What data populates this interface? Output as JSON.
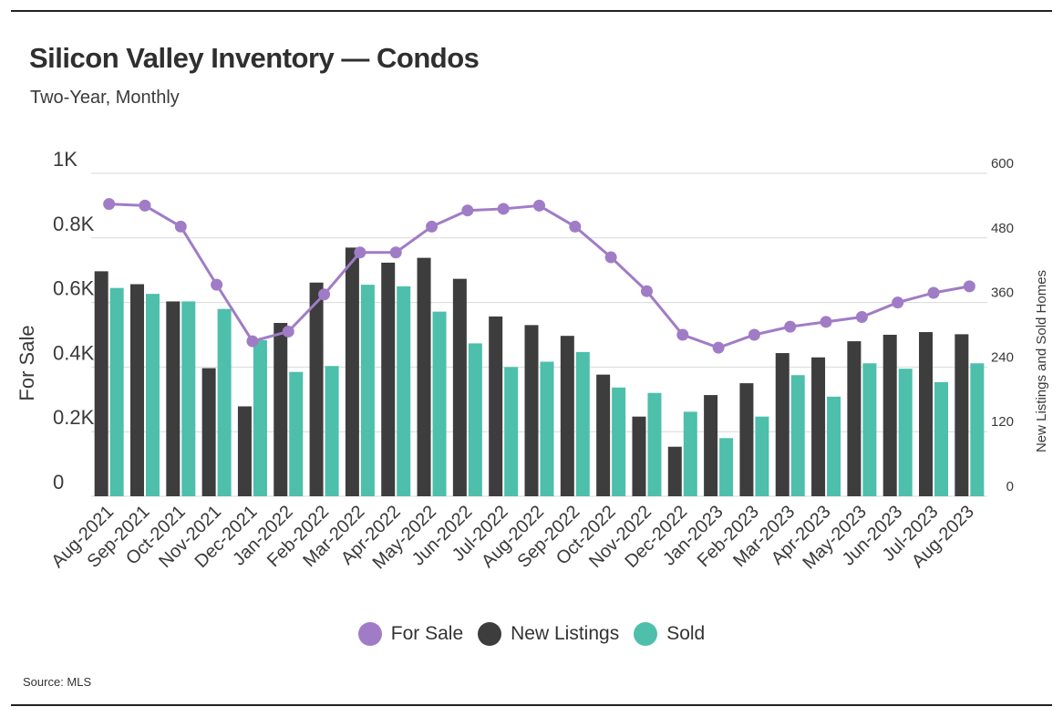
{
  "title": "Silicon Valley Inventory — Condos",
  "subtitle": "Two-Year, Monthly",
  "source": "Source: MLS",
  "colors": {
    "for_sale": "#a07cc6",
    "new_listings": "#3d3d3d",
    "sold": "#4dbfab",
    "grid": "#d9d9d9"
  },
  "legend": [
    {
      "label": "For Sale",
      "color": "#a07cc6"
    },
    {
      "label": "New Listings",
      "color": "#3d3d3d"
    },
    {
      "label": "Sold",
      "color": "#4dbfab"
    }
  ],
  "chart_data": {
    "type": "bar+line",
    "title": "Silicon Valley Inventory — Condos",
    "subtitle": "Two-Year, Monthly",
    "categories": [
      "Aug-2021",
      "Sep-2021",
      "Oct-2021",
      "Nov-2021",
      "Dec-2021",
      "Jan-2022",
      "Feb-2022",
      "Mar-2022",
      "Apr-2022",
      "May-2022",
      "Jun-2022",
      "Jul-2022",
      "Aug-2022",
      "Sep-2022",
      "Oct-2022",
      "Nov-2022",
      "Dec-2022",
      "Jan-2023",
      "Feb-2023",
      "Mar-2023",
      "Apr-2023",
      "May-2023",
      "Jun-2023",
      "Jul-2023",
      "Aug-2023"
    ],
    "left_axis": {
      "label": "For Sale",
      "ylim": [
        0,
        1000
      ],
      "ticks": [
        0,
        200,
        400,
        600,
        800,
        1000
      ],
      "tick_labels": [
        "0",
        "0.2K",
        "0.4K",
        "0.6K",
        "0.8K",
        "1K"
      ]
    },
    "right_axis": {
      "label": "New Listings and Sold Homes",
      "ylim": [
        0,
        600
      ],
      "ticks": [
        0,
        120,
        240,
        360,
        480,
        600
      ],
      "tick_labels": [
        "0",
        "120",
        "240",
        "360",
        "480",
        "600"
      ]
    },
    "series": [
      {
        "name": "For Sale",
        "type": "line",
        "axis": "left",
        "values": [
          905,
          900,
          835,
          655,
          480,
          510,
          625,
          755,
          755,
          835,
          885,
          890,
          900,
          835,
          740,
          635,
          500,
          460,
          500,
          525,
          540,
          555,
          600,
          630,
          650
        ]
      },
      {
        "name": "New Listings",
        "type": "bar",
        "axis": "right",
        "values": [
          418,
          394,
          362,
          238,
          167,
          322,
          397,
          462,
          434,
          443,
          404,
          334,
          318,
          298,
          226,
          148,
          92,
          188,
          210,
          266,
          258,
          288,
          300,
          305,
          301
        ]
      },
      {
        "name": "Sold",
        "type": "bar",
        "axis": "right",
        "values": [
          387,
          376,
          362,
          348,
          290,
          231,
          242,
          393,
          390,
          343,
          284,
          240,
          250,
          268,
          202,
          192,
          157,
          108,
          148,
          225,
          185,
          247,
          237,
          212,
          247
        ]
      }
    ]
  }
}
